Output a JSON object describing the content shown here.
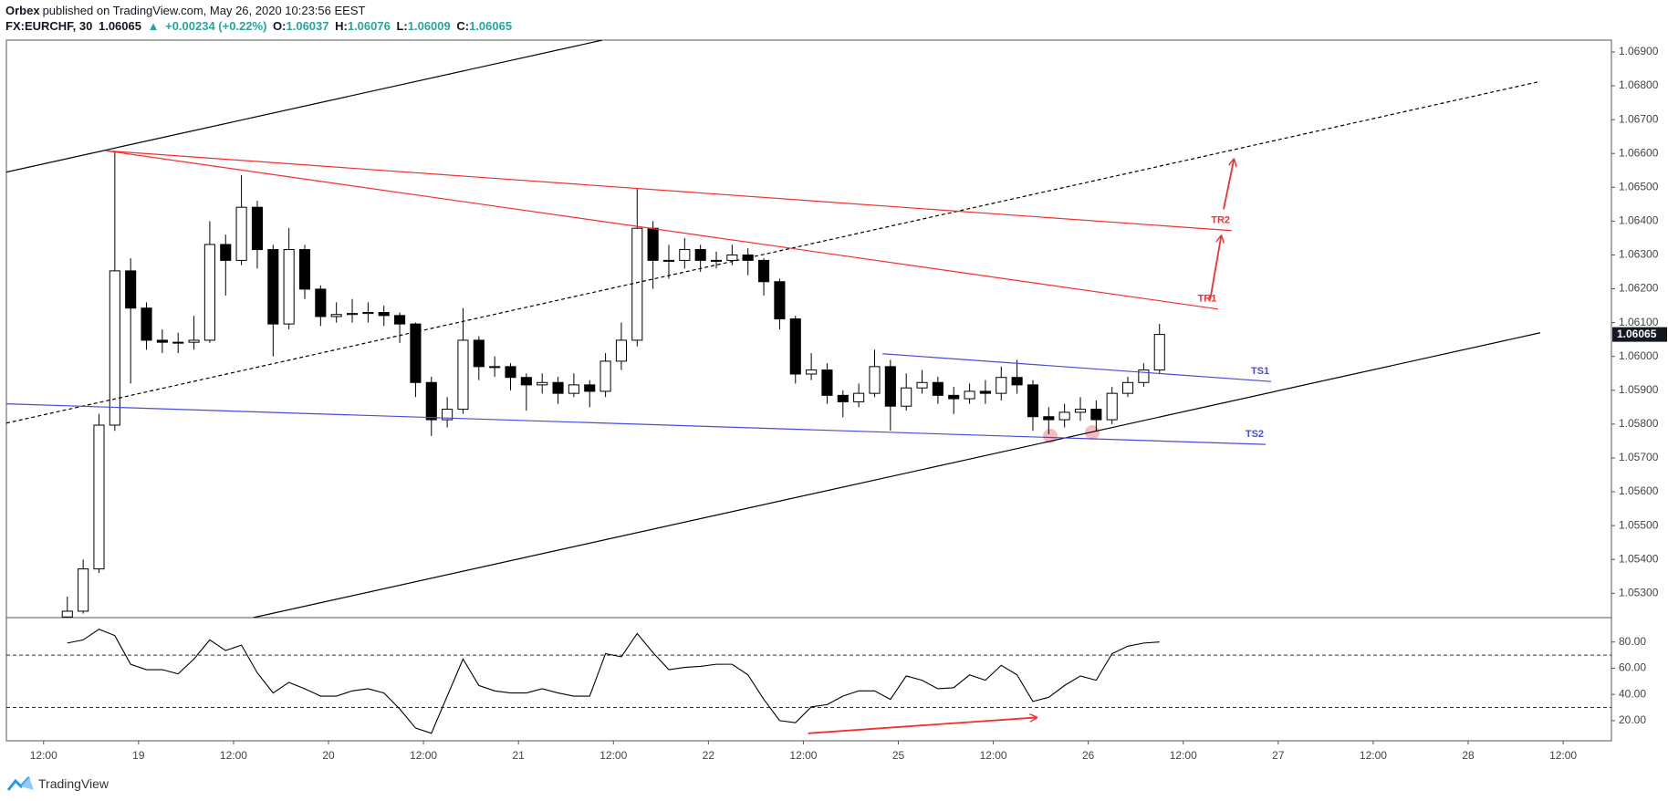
{
  "header": {
    "publisher": "Orbex",
    "published": "published on TradingView.com, May 26, 2020 10:23:56 EEST"
  },
  "legend": {
    "symbol": "FX:EURCHF, 30",
    "last": "1.06065",
    "arrow": "▲",
    "change": "+0.00234 (+0.22%)",
    "open_label": "O:",
    "open": "1.06037",
    "high_label": "H:",
    "high": "1.06076",
    "low_label": "L:",
    "low": "1.06009",
    "close_label": "C:",
    "close": "1.06065"
  },
  "chart_data": [
    {
      "type": "candlestick",
      "up_color": "#ffffff",
      "down_color": "#000000",
      "edge_color": "#000000",
      "x": [
        15,
        17,
        19,
        21,
        23,
        25,
        27,
        29,
        31,
        33,
        35,
        37,
        39,
        41,
        43,
        45,
        47,
        49,
        51,
        53,
        55,
        57,
        59,
        61,
        63,
        65,
        67,
        69,
        71,
        73,
        75,
        77,
        79,
        81,
        83,
        85,
        87,
        89,
        91,
        93,
        95,
        97,
        99,
        101,
        103,
        105,
        107,
        109,
        111,
        113,
        115,
        117,
        119,
        121,
        123,
        125,
        127,
        129,
        131,
        133,
        135,
        137,
        139,
        141,
        143,
        145,
        147,
        149,
        151,
        153
      ],
      "open": [
        1.0523,
        1.05247,
        1.05372,
        1.05797,
        1.06253,
        1.06143,
        1.06048,
        1.06042,
        1.06042,
        1.06048,
        1.06331,
        1.06284,
        1.06441,
        1.06316,
        1.06096,
        1.06316,
        1.06199,
        1.06118,
        1.06124,
        1.06127,
        1.0613,
        1.06121,
        1.06096,
        1.05923,
        1.05813,
        1.05844,
        1.06048,
        1.0597,
        1.0597,
        1.05938,
        1.05916,
        1.05923,
        1.05891,
        1.05916,
        1.05897,
        1.05986,
        1.06048,
        1.06379,
        1.06284,
        1.06284,
        1.06316,
        1.06284,
        1.06284,
        1.063,
        1.06284,
        1.06221,
        1.06111,
        1.05948,
        1.0596,
        1.05885,
        1.05866,
        1.05891,
        1.0597,
        1.05853,
        1.05907,
        1.05923,
        1.05885,
        1.05875,
        1.05897,
        1.05891,
        1.05938,
        1.05916,
        1.05822,
        1.05813,
        1.05835,
        1.05844,
        1.05813,
        1.05891,
        1.05923,
        1.0596
      ],
      "high": [
        1.0529,
        1.054,
        1.0583,
        1.06608,
        1.0629,
        1.0616,
        1.0608,
        1.0607,
        1.0612,
        1.064,
        1.0636,
        1.06536,
        1.0646,
        1.0633,
        1.0638,
        1.0633,
        1.0621,
        1.0616,
        1.0617,
        1.0616,
        1.0615,
        1.0613,
        1.061,
        1.0594,
        1.0588,
        1.06143,
        1.0606,
        1.06,
        1.0598,
        1.0595,
        1.0595,
        1.0594,
        1.0595,
        1.0593,
        1.0601,
        1.061,
        1.06495,
        1.064,
        1.0633,
        1.0635,
        1.0633,
        1.0631,
        1.0633,
        1.0632,
        1.0629,
        1.0623,
        1.0612,
        1.0601,
        1.0598,
        1.059,
        1.0592,
        1.0602,
        1.0599,
        1.0595,
        1.0596,
        1.0594,
        1.0591,
        1.0592,
        1.0593,
        1.0597,
        1.0599,
        1.0593,
        1.0585,
        1.0586,
        1.0588,
        1.0587,
        1.0591,
        1.0594,
        1.0598,
        1.06096
      ],
      "low": [
        1.0523,
        1.0524,
        1.0536,
        1.0578,
        1.0592,
        1.0602,
        1.0601,
        1.0601,
        1.0602,
        1.0604,
        1.0618,
        1.0627,
        1.0626,
        1.06,
        1.0608,
        1.0617,
        1.0609,
        1.061,
        1.061,
        1.061,
        1.0609,
        1.0604,
        1.0588,
        1.05765,
        1.0579,
        1.0583,
        1.0593,
        1.0594,
        1.059,
        1.0584,
        1.0589,
        1.0586,
        1.0588,
        1.0585,
        1.0588,
        1.0596,
        1.0603,
        1.062,
        1.0623,
        1.0626,
        1.0625,
        1.0626,
        1.0627,
        1.0624,
        1.0618,
        1.0608,
        1.0592,
        1.0593,
        1.0586,
        1.0582,
        1.0585,
        1.0588,
        1.05781,
        1.0584,
        1.0589,
        1.0586,
        1.0583,
        1.0586,
        1.0586,
        1.0587,
        1.0589,
        1.0578,
        1.0577,
        1.0579,
        1.0581,
        1.0578,
        1.058,
        1.0588,
        1.0591,
        1.0595
      ],
      "close": [
        1.05247,
        1.05372,
        1.05797,
        1.06253,
        1.06143,
        1.06048,
        1.06042,
        1.06042,
        1.06048,
        1.06331,
        1.06284,
        1.06441,
        1.06316,
        1.06096,
        1.06316,
        1.06199,
        1.06118,
        1.06124,
        1.06127,
        1.0613,
        1.06121,
        1.06096,
        1.05923,
        1.05813,
        1.05844,
        1.06048,
        1.0597,
        1.0597,
        1.05938,
        1.05916,
        1.05923,
        1.05891,
        1.05916,
        1.05897,
        1.05986,
        1.06048,
        1.06379,
        1.06284,
        1.06284,
        1.06316,
        1.06284,
        1.06284,
        1.063,
        1.06284,
        1.06221,
        1.06111,
        1.05948,
        1.0596,
        1.05885,
        1.05866,
        1.05891,
        1.0597,
        1.05853,
        1.05907,
        1.05923,
        1.05885,
        1.05875,
        1.05897,
        1.05891,
        1.05938,
        1.05916,
        1.05822,
        1.05813,
        1.05835,
        1.05844,
        1.05813,
        1.05891,
        1.05923,
        1.0596,
        1.06065
      ],
      "xlim": [
        7.3,
        210.1
      ],
      "xticks": [
        {
          "value": 12,
          "label": "12:00"
        },
        {
          "value": 24,
          "label": "19"
        },
        {
          "value": 36,
          "label": "12:00"
        },
        {
          "value": 48,
          "label": "20"
        },
        {
          "value": 60,
          "label": "12:00"
        },
        {
          "value": 72,
          "label": "21"
        },
        {
          "value": 84,
          "label": "12:00"
        },
        {
          "value": 96,
          "label": "22"
        },
        {
          "value": 108,
          "label": "12:00"
        },
        {
          "value": 120,
          "label": "25"
        },
        {
          "value": 132,
          "label": "12:00"
        },
        {
          "value": 144,
          "label": "26"
        },
        {
          "value": 156,
          "label": "12:00"
        },
        {
          "value": 168,
          "label": "27"
        },
        {
          "value": 180,
          "label": "12:00"
        },
        {
          "value": 192,
          "label": "28"
        },
        {
          "value": 204,
          "label": "12:00"
        }
      ],
      "ylim": [
        1.05228,
        1.06935
      ],
      "yticks": [
        {
          "value": 1.053,
          "label": "1.05300"
        },
        {
          "value": 1.054,
          "label": "1.05400"
        },
        {
          "value": 1.055,
          "label": "1.05500"
        },
        {
          "value": 1.056,
          "label": "1.05600"
        },
        {
          "value": 1.057,
          "label": "1.05700"
        },
        {
          "value": 1.058,
          "label": "1.05800"
        },
        {
          "value": 1.059,
          "label": "1.05900"
        },
        {
          "value": 1.06,
          "label": "1.06000"
        },
        {
          "value": 1.061,
          "label": "1.06100"
        },
        {
          "value": 1.062,
          "label": "1.06200"
        },
        {
          "value": 1.063,
          "label": "1.06300"
        },
        {
          "value": 1.064,
          "label": "1.06400"
        },
        {
          "value": 1.065,
          "label": "1.06500"
        },
        {
          "value": 1.066,
          "label": "1.06600"
        },
        {
          "value": 1.067,
          "label": "1.06700"
        },
        {
          "value": 1.068,
          "label": "1.06800"
        },
        {
          "value": 1.069,
          "label": "1.06900"
        }
      ],
      "last_price": {
        "value": 1.06065,
        "label": "1.06065"
      },
      "drawings": [
        {
          "kind": "marker",
          "color": "#f4a3ad",
          "points": [
            [
              139.2,
              1.05765
            ]
          ]
        },
        {
          "kind": "marker",
          "color": "#f4a3ad",
          "points": [
            [
              144.5,
              1.05775
            ]
          ]
        },
        {
          "kind": "line",
          "color": "#000000",
          "points": [
            [
              7.3,
              1.06545
            ],
            [
              82.6,
              1.06935
            ]
          ]
        },
        {
          "kind": "line",
          "color": "#000000",
          "points": [
            [
              38.5,
              1.05228
            ],
            [
              201.1,
              1.0607
            ]
          ]
        },
        {
          "kind": "line",
          "color": "#000000",
          "dashed": true,
          "points": [
            [
              7.3,
              1.05803
            ],
            [
              201.1,
              1.06813
            ]
          ]
        },
        {
          "kind": "line",
          "color": "#f23030",
          "label": "TR1",
          "points": [
            [
              19.9,
              1.06608
            ],
            [
              160.4,
              1.0614
            ]
          ]
        },
        {
          "kind": "line",
          "color": "#f23030",
          "label": "TR2",
          "points": [
            [
              19.9,
              1.06608
            ],
            [
              162.1,
              1.06372
            ]
          ]
        },
        {
          "kind": "line",
          "color": "#4b4bd8",
          "label": "TS1",
          "points": [
            [
              118,
              1.06008
            ],
            [
              167.1,
              1.05926
            ]
          ]
        },
        {
          "kind": "line",
          "color": "#4b4bd8",
          "label": "TS2",
          "points": [
            [
              7.3,
              1.0586
            ],
            [
              166.4,
              1.0574
            ]
          ]
        },
        {
          "kind": "arrow",
          "color": "#f23030",
          "points": [
            [
              159.4,
              1.06168
            ],
            [
              160.8,
              1.06357
            ]
          ]
        },
        {
          "kind": "arrow",
          "color": "#f23030",
          "points": [
            [
              161.1,
              1.06435
            ],
            [
              162.4,
              1.06583
            ]
          ]
        }
      ]
    },
    {
      "type": "line",
      "color": "#000000",
      "x": [
        15,
        17,
        19,
        21,
        23,
        25,
        27,
        29,
        31,
        33,
        35,
        37,
        39,
        41,
        43,
        45,
        47,
        49,
        51,
        53,
        55,
        57,
        59,
        61,
        63,
        65,
        67,
        69,
        71,
        73,
        75,
        77,
        79,
        81,
        83,
        85,
        87,
        89,
        91,
        93,
        95,
        97,
        99,
        101,
        103,
        105,
        107,
        109,
        111,
        113,
        115,
        117,
        119,
        121,
        123,
        125,
        127,
        129,
        131,
        133,
        135,
        137,
        139,
        141,
        143,
        145,
        147,
        149,
        151,
        153
      ],
      "values": [
        79.2,
        81.6,
        89.7,
        84.9,
        63,
        58.9,
        58.9,
        55.7,
        67,
        81.6,
        73.5,
        77.6,
        56.5,
        41.1,
        49.2,
        44.3,
        38.7,
        38.7,
        42.7,
        44.3,
        41.1,
        28.9,
        14.3,
        10.3,
        38.7,
        67,
        46.8,
        42.7,
        41.1,
        41.1,
        44.3,
        41.1,
        38.7,
        38.7,
        71.1,
        68.7,
        86.5,
        71.9,
        58.9,
        60.6,
        61.4,
        63,
        63,
        54.9,
        36.2,
        20,
        18.4,
        30.5,
        32.2,
        38.7,
        42.7,
        42.7,
        36.2,
        54.1,
        50.8,
        44.3,
        45.1,
        54.9,
        50.8,
        62.2,
        54.9,
        34.6,
        37.8,
        46.8,
        54.1,
        50.8,
        71.1,
        76.8,
        79.2,
        80
      ],
      "ylim": [
        4.6,
        98.6
      ],
      "yticks": [
        {
          "value": 20,
          "label": "20.00"
        },
        {
          "value": 40,
          "label": "40.00"
        },
        {
          "value": 60,
          "label": "60.00"
        },
        {
          "value": 80,
          "label": "80.00"
        }
      ],
      "bands": [
        30,
        70
      ],
      "drawings": [
        {
          "kind": "arrow",
          "color": "#f23030",
          "points": [
            [
              108.6,
              10.3
            ],
            [
              137.5,
              22.4
            ]
          ]
        }
      ]
    }
  ],
  "footer": {
    "brand": "TradingView"
  }
}
